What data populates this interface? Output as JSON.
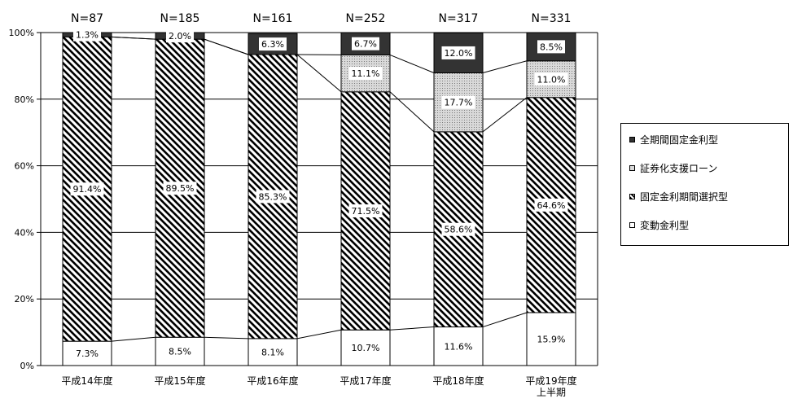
{
  "chart_data": {
    "type": "bar",
    "stacked": true,
    "categories": [
      [
        "平成14年度"
      ],
      [
        "平成15年度"
      ],
      [
        "平成16年度"
      ],
      [
        "平成17年度"
      ],
      [
        "平成18年度"
      ],
      [
        "平成19年度",
        "上半期"
      ]
    ],
    "n_labels": [
      "N=87",
      "N=185",
      "N=161",
      "N=252",
      "N=317",
      "N=331"
    ],
    "series": [
      {
        "name": "変動金利型",
        "values": [
          7.3,
          8.5,
          8.1,
          10.7,
          11.6,
          15.9
        ],
        "labels": [
          "7.3%",
          "8.5%",
          "8.1%",
          "10.7%",
          "11.6%",
          "15.9%"
        ],
        "pattern": "white"
      },
      {
        "name": "固定金利期間選択型",
        "values": [
          91.4,
          89.5,
          85.3,
          71.5,
          58.6,
          64.6
        ],
        "labels": [
          "91.4%",
          "89.5%",
          "85.3%",
          "71.5%",
          "58.6%",
          "64.6%"
        ],
        "pattern": "diagonal"
      },
      {
        "name": "証券化支援ローン",
        "values": [
          0,
          0,
          0,
          11.1,
          17.7,
          11.0
        ],
        "labels": [
          "",
          "",
          "",
          "11.1%",
          "17.7%",
          "11.0%"
        ],
        "pattern": "dots"
      },
      {
        "name": "全期間固定金利型",
        "values": [
          1.3,
          2.0,
          6.3,
          6.7,
          12.0,
          8.5
        ],
        "labels": [
          "1.3%",
          "2.0%",
          "6.3%",
          "6.7%",
          "12.0%",
          "8.5%"
        ],
        "pattern": "dark"
      }
    ],
    "legend_order": [
      "全期間固定金利型",
      "証券化支援ローン",
      "固定金利期間選択型",
      "変動金利型"
    ],
    "ylim": [
      0,
      100
    ],
    "yticks": [
      "0%",
      "20%",
      "40%",
      "60%",
      "80%",
      "100%"
    ],
    "grid": true,
    "legend_position": "right",
    "colors": {
      "dark": "#333333",
      "dots_bg": "#d9d9d9",
      "line": "#000000"
    }
  }
}
